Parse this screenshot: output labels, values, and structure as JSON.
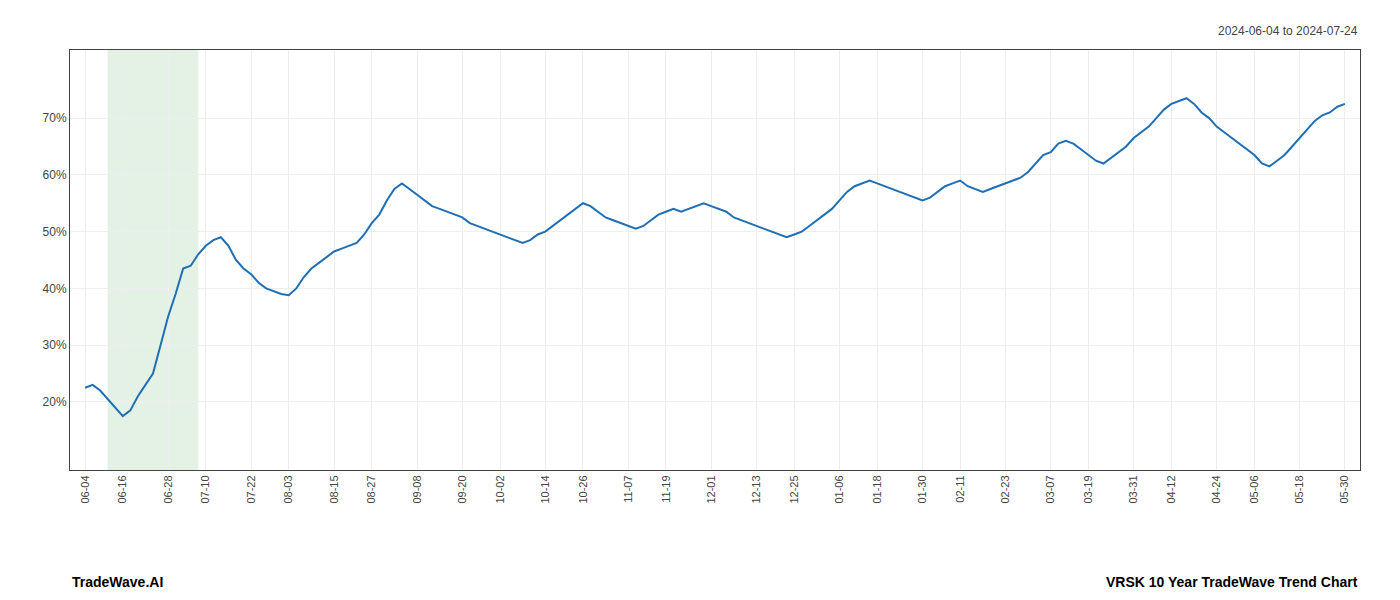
{
  "chart_data": {
    "type": "line",
    "title": "2024-06-04 to 2024-07-24",
    "footer": [
      "TradeWave.AI",
      "VRSK 10 Year TradeWave Trend Chart"
    ],
    "x": [
      0,
      1,
      2,
      3,
      4,
      5,
      6,
      7,
      8,
      9,
      10,
      11,
      12,
      13,
      14,
      15,
      16,
      17,
      18,
      19,
      20,
      21,
      22,
      23,
      24,
      25,
      26,
      27,
      28,
      29,
      30,
      31,
      32,
      33,
      34,
      35,
      36,
      37,
      38,
      39,
      40,
      41,
      42,
      43,
      44,
      45,
      46,
      47,
      48,
      49,
      50,
      51,
      52,
      53,
      54,
      55,
      56,
      57,
      58,
      59,
      60,
      61,
      62,
      63,
      64,
      65,
      66,
      67,
      68,
      69,
      70,
      71,
      72,
      73,
      74,
      75,
      76,
      77,
      78,
      79,
      80,
      81,
      82,
      83,
      84,
      85,
      86,
      87,
      88,
      89,
      90,
      91,
      92,
      93,
      94,
      95,
      96,
      97,
      98,
      99,
      100,
      101,
      102,
      103,
      104,
      105,
      106,
      107,
      108,
      109,
      110,
      111,
      112,
      113,
      114,
      115,
      116,
      117,
      118,
      119,
      120,
      121,
      122,
      123,
      124,
      125,
      126,
      127,
      128,
      129,
      130,
      131,
      132,
      133,
      134,
      135,
      136,
      137,
      138,
      139,
      140,
      141,
      142,
      143,
      144,
      145,
      146,
      147,
      148,
      149,
      150,
      151,
      152,
      153,
      154,
      155,
      156,
      157,
      158,
      159,
      160,
      161,
      162,
      163,
      164,
      165,
      166,
      167
    ],
    "values": [
      22.5,
      23.0,
      22.0,
      20.5,
      19.0,
      17.5,
      18.5,
      21.0,
      23.0,
      25.0,
      30.0,
      35.0,
      39.0,
      43.5,
      44.0,
      46.0,
      47.5,
      48.5,
      49.0,
      47.5,
      45.0,
      43.5,
      42.5,
      41.0,
      40.0,
      39.5,
      39.0,
      38.8,
      40.0,
      42.0,
      43.5,
      44.5,
      45.5,
      46.5,
      47.0,
      47.5,
      48.0,
      49.5,
      51.5,
      53.0,
      55.5,
      57.5,
      58.5,
      57.5,
      56.5,
      55.5,
      54.5,
      54.0,
      53.5,
      53.0,
      52.5,
      51.5,
      51.0,
      50.5,
      50.0,
      49.5,
      49.0,
      48.5,
      48.0,
      48.5,
      49.5,
      50.0,
      51.0,
      52.0,
      53.0,
      54.0,
      55.0,
      54.5,
      53.5,
      52.5,
      52.0,
      51.5,
      51.0,
      50.5,
      51.0,
      52.0,
      53.0,
      53.5,
      54.0,
      53.5,
      54.0,
      54.5,
      55.0,
      54.5,
      54.0,
      53.5,
      52.5,
      52.0,
      51.5,
      51.0,
      50.5,
      50.0,
      49.5,
      49.0,
      49.5,
      50.0,
      51.0,
      52.0,
      53.0,
      54.0,
      55.5,
      57.0,
      58.0,
      58.5,
      59.0,
      58.5,
      58.0,
      57.5,
      57.0,
      56.5,
      56.0,
      55.5,
      56.0,
      57.0,
      58.0,
      58.5,
      59.0,
      58.0,
      57.5,
      57.0,
      57.5,
      58.0,
      58.5,
      59.0,
      59.5,
      60.5,
      62.0,
      63.5,
      64.0,
      65.5,
      66.0,
      65.5,
      64.5,
      63.5,
      62.5,
      62.0,
      63.0,
      64.0,
      65.0,
      66.5,
      67.5,
      68.5,
      70.0,
      71.5,
      72.5,
      73.0,
      73.5,
      72.5,
      71.0,
      70.0,
      68.5,
      67.5,
      66.5,
      65.5,
      64.5,
      63.5,
      62.0,
      61.5,
      62.5,
      63.5,
      65.0,
      66.5,
      68.0,
      69.5,
      70.5,
      71.0,
      72.0,
      72.5
    ],
    "color": "#1f6fb5",
    "span": {
      "from": 3,
      "to": 15,
      "color": "#c8e6c9"
    },
    "xlim": [
      -2,
      169
    ],
    "xticks": [
      {
        "value": 0,
        "label": "06-04"
      },
      {
        "value": 5,
        "label": "06-16"
      },
      {
        "value": 11,
        "label": "06-28"
      },
      {
        "value": 16,
        "label": "07-10"
      },
      {
        "value": 22,
        "label": "07-22"
      },
      {
        "value": 27,
        "label": "08-03"
      },
      {
        "value": 33,
        "label": "08-15"
      },
      {
        "value": 38,
        "label": "08-27"
      },
      {
        "value": 44,
        "label": "09-08"
      },
      {
        "value": 50,
        "label": "09-20"
      },
      {
        "value": 55,
        "label": "10-02"
      },
      {
        "value": 61,
        "label": "10-14"
      },
      {
        "value": 66,
        "label": "10-26"
      },
      {
        "value": 72,
        "label": "11-07"
      },
      {
        "value": 77,
        "label": "11-19"
      },
      {
        "value": 83,
        "label": "12-01"
      },
      {
        "value": 89,
        "label": "12-13"
      },
      {
        "value": 94,
        "label": "12-25"
      },
      {
        "value": 100,
        "label": "01-06"
      },
      {
        "value": 105,
        "label": "01-18"
      },
      {
        "value": 111,
        "label": "01-30"
      },
      {
        "value": 116,
        "label": "02-11"
      },
      {
        "value": 122,
        "label": "02-23"
      },
      {
        "value": 128,
        "label": "03-07"
      },
      {
        "value": 133,
        "label": "03-19"
      },
      {
        "value": 139,
        "label": "03-31"
      },
      {
        "value": 144,
        "label": "04-12"
      },
      {
        "value": 150,
        "label": "04-24"
      },
      {
        "value": 155,
        "label": "05-06"
      },
      {
        "value": 161,
        "label": "05-18"
      },
      {
        "value": 167,
        "label": "05-30"
      }
    ],
    "ylim": [
      8,
      82
    ],
    "yticks": [
      {
        "value": 20,
        "label": "20%"
      },
      {
        "value": 30,
        "label": "30%"
      },
      {
        "value": 40,
        "label": "40%"
      },
      {
        "value": 50,
        "label": "50%"
      },
      {
        "value": 60,
        "label": "60%"
      },
      {
        "value": 70,
        "label": "70%"
      }
    ],
    "grid": true
  }
}
